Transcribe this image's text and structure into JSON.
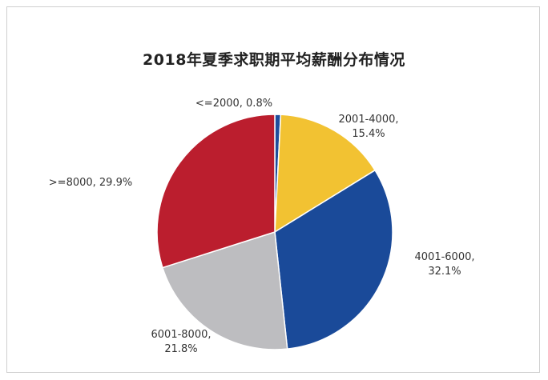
{
  "chart_data": {
    "type": "pie",
    "title": "2018年夏季求职期平均薪酬分布情况",
    "slices": [
      {
        "label": "<=2000",
        "value": 0.8,
        "display": "0.8%",
        "color": "#1f4e9c"
      },
      {
        "label": "2001-4000",
        "value": 15.4,
        "display": "15.4%",
        "color": "#f2c232"
      },
      {
        "label": "4001-6000",
        "value": 32.1,
        "display": "32.1%",
        "color": "#1a4a99"
      },
      {
        "label": "6001-8000",
        "value": 21.8,
        "display": "21.8%",
        "color": "#bdbdc0"
      },
      {
        "label": ">=8000",
        "value": 29.9,
        "display": "29.9%",
        "color": "#bb1e2e"
      }
    ],
    "legend": "none"
  }
}
